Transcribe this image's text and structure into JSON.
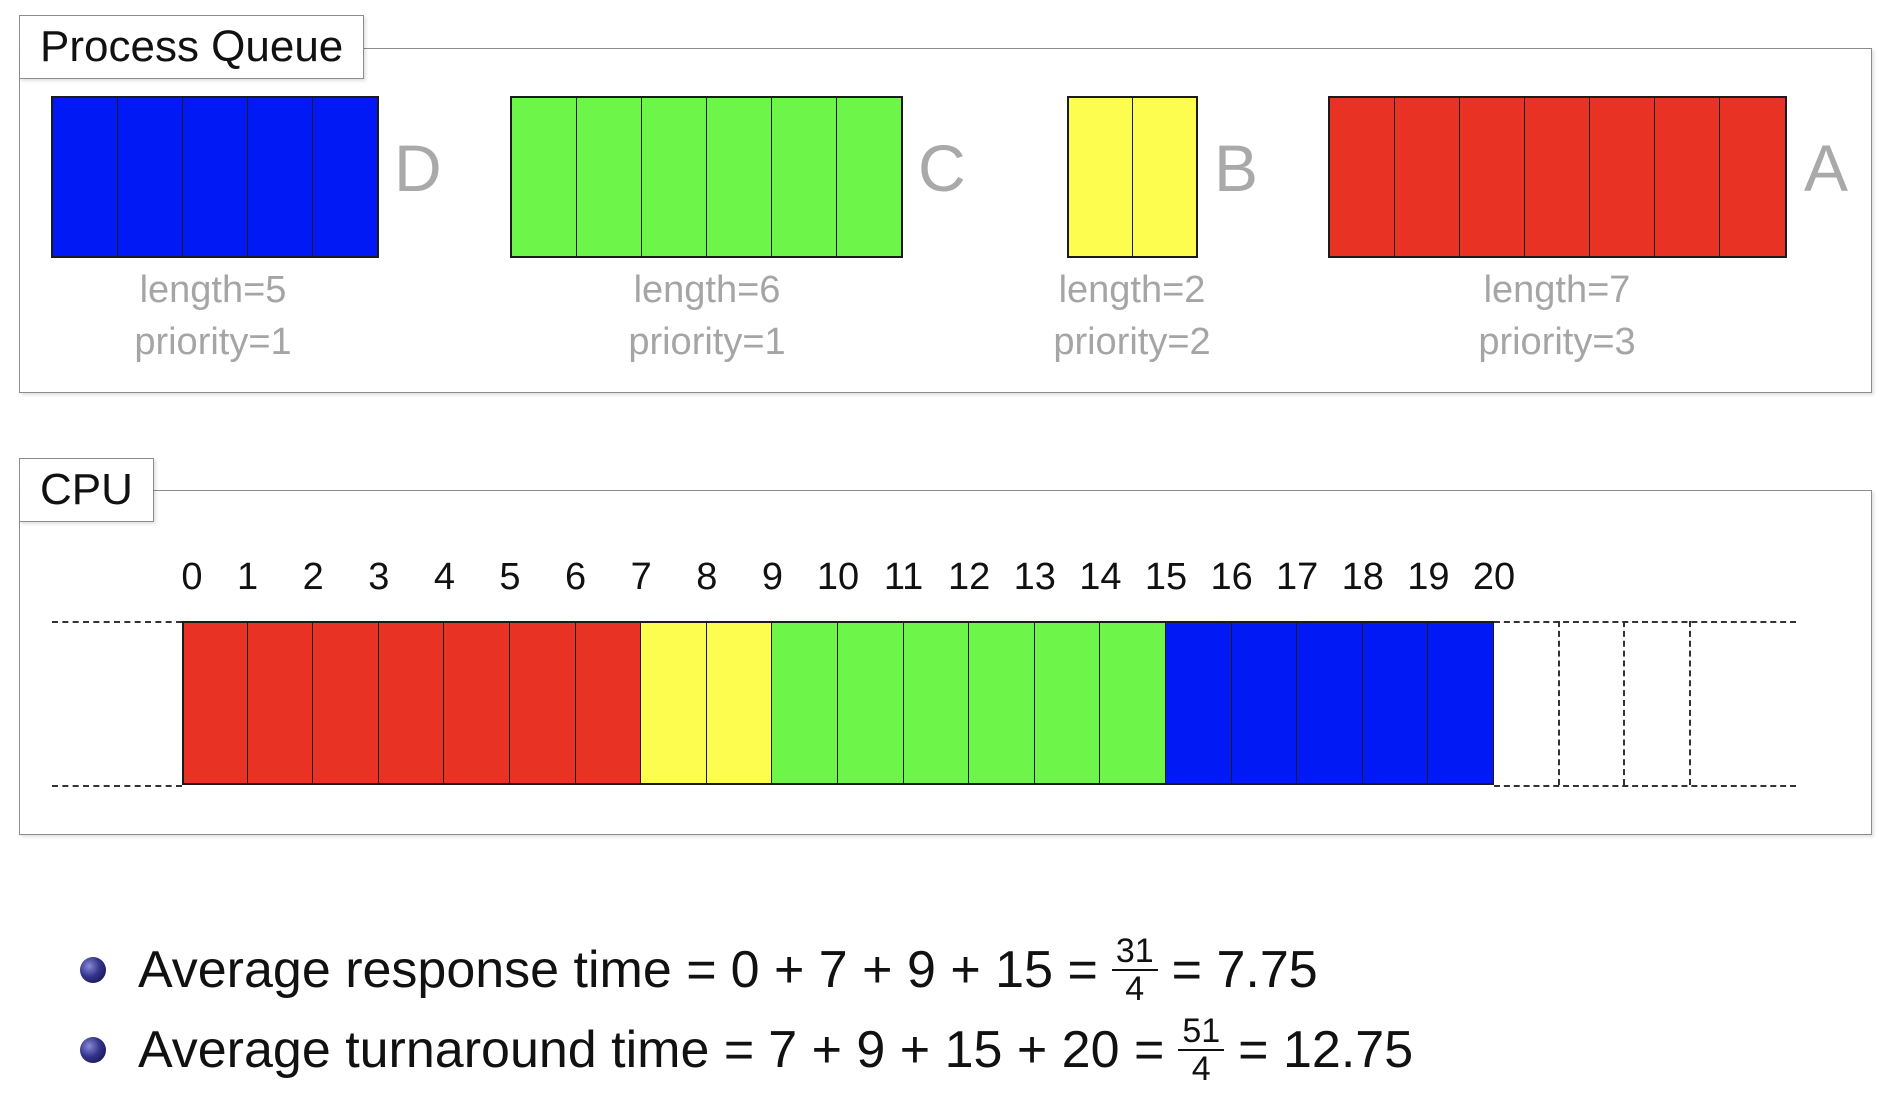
{
  "queue": {
    "title": "Process Queue",
    "processes": [
      {
        "name": "D",
        "length": 5,
        "priority": 1,
        "color": "#0019f5",
        "length_label": "length=5",
        "priority_label": "priority=1"
      },
      {
        "name": "C",
        "length": 6,
        "priority": 1,
        "color": "#6ef54a",
        "length_label": "length=6",
        "priority_label": "priority=1"
      },
      {
        "name": "B",
        "length": 2,
        "priority": 2,
        "color": "#fdfd4f",
        "length_label": "length=2",
        "priority_label": "priority=2"
      },
      {
        "name": "A",
        "length": 7,
        "priority": 3,
        "color": "#e83224",
        "length_label": "length=7",
        "priority_label": "priority=3"
      }
    ]
  },
  "cpu": {
    "title": "CPU",
    "ticks": [
      "0",
      "1",
      "2",
      "3",
      "4",
      "5",
      "6",
      "7",
      "8",
      "9",
      "10",
      "11",
      "12",
      "13",
      "14",
      "15",
      "16",
      "17",
      "18",
      "19",
      "20"
    ],
    "schedule": [
      {
        "process": "A",
        "start": 0,
        "end": 7
      },
      {
        "process": "B",
        "start": 7,
        "end": 9
      },
      {
        "process": "C",
        "start": 9,
        "end": 15
      },
      {
        "process": "D",
        "start": 15,
        "end": 20
      }
    ],
    "empty_slots": 3
  },
  "metrics": [
    {
      "label": "Average response time =",
      "expression": "0 + 7 + 9 + 15 =",
      "numerator": "31",
      "denominator": "4",
      "result": "= 7.75"
    },
    {
      "label": "Average turnaround time =",
      "expression": "7 + 9 + 15 + 20 =",
      "numerator": "51",
      "denominator": "4",
      "result": "= 12.75"
    }
  ]
}
